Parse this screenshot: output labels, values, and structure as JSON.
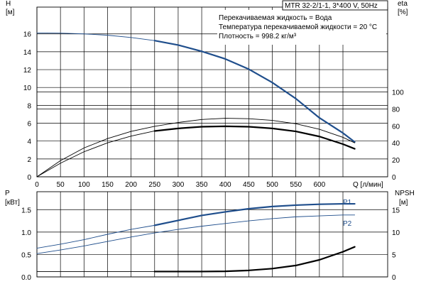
{
  "chart_data": [
    {
      "type": "line",
      "panel": "head-efficiency",
      "title": "MTR 32-2/1-1, 3*400 V, 50Hz",
      "annotations": [
        "Перекачиваемая жидкость = Вода",
        "Температура перекачиваемой жидкости = 20 °C",
        "Плотность = 998.2 кг/м³"
      ],
      "xlabel": "Q [л/мин]",
      "xlim": [
        0,
        745
      ],
      "xticks": [
        0,
        50,
        100,
        150,
        200,
        250,
        300,
        350,
        400,
        450,
        500,
        550,
        600
      ],
      "left_axis": {
        "label_line1": "H",
        "label_line2": "[м]",
        "ylim": [
          0,
          19
        ],
        "ticks": [
          0,
          2,
          4,
          6,
          8,
          10,
          12,
          14,
          16
        ]
      },
      "right_axis": {
        "label_line1": "eta",
        "label_line2": "[%]",
        "ylim": [
          0,
          200
        ],
        "ticks": [
          0,
          20,
          40,
          60,
          80,
          100
        ]
      },
      "grid": true,
      "series": [
        {
          "key": "head-thin",
          "axis": "left",
          "color": "#1f4e8c",
          "width": 0.9,
          "x": [
            0,
            50,
            100,
            150,
            200,
            250
          ],
          "y": [
            16.1,
            16.08,
            16.0,
            15.85,
            15.6,
            15.25
          ]
        },
        {
          "key": "head-thick",
          "axis": "left",
          "color": "#1f4e8c",
          "width": 2.2,
          "x": [
            250,
            300,
            350,
            400,
            450,
            500,
            550,
            600,
            650,
            675
          ],
          "y": [
            15.25,
            14.75,
            14.05,
            13.2,
            12.05,
            10.55,
            8.75,
            6.6,
            4.9,
            3.9
          ]
        },
        {
          "key": "eta-upper",
          "axis": "right",
          "color": "#000000",
          "width": 0.9,
          "x": [
            0,
            50,
            100,
            150,
            200,
            250,
            300,
            350,
            400,
            450,
            500,
            550,
            600,
            650,
            675
          ],
          "y": [
            0,
            19,
            34,
            45,
            53.5,
            59.5,
            64,
            67.5,
            69,
            68.5,
            66.5,
            62.5,
            56,
            46.5,
            40
          ]
        },
        {
          "key": "eta-lower",
          "axis": "right",
          "color": "#000000",
          "width": 0.9,
          "x": [
            0,
            50,
            100,
            150,
            200,
            250
          ],
          "y": [
            0,
            16,
            29.5,
            40,
            48,
            54
          ]
        },
        {
          "key": "eta-lower-thick",
          "axis": "right",
          "color": "#000000",
          "width": 2.2,
          "x": [
            250,
            300,
            350,
            400,
            450,
            500,
            550,
            600,
            650,
            675
          ],
          "y": [
            54,
            57,
            59,
            59.5,
            59,
            57,
            53.5,
            47.5,
            38.5,
            33
          ]
        }
      ]
    },
    {
      "type": "line",
      "panel": "power-npsh",
      "xlim": [
        0,
        745
      ],
      "left_axis": {
        "label_line1": "P",
        "label_line2": "[кВт]",
        "ylim": [
          0,
          1.9
        ],
        "ticks": [
          0.0,
          0.5,
          1.0,
          1.5
        ],
        "tick_labels": [
          "0.0",
          "0.5",
          "1.0",
          "1.5"
        ]
      },
      "right_axis": {
        "label_line1": "NPSH",
        "label_line2": "[м]",
        "ylim": [
          0,
          19
        ],
        "ticks": [
          0,
          5,
          10,
          15
        ]
      },
      "grid": true,
      "series": [
        {
          "key": "p1-thin",
          "name": "P1",
          "axis": "left",
          "color": "#1f4e8c",
          "width": 0.9,
          "x": [
            0,
            50,
            100,
            150,
            200,
            250
          ],
          "y": [
            0.64,
            0.73,
            0.83,
            0.95,
            1.06,
            1.15
          ]
        },
        {
          "key": "p1-thick",
          "axis": "left",
          "color": "#1f4e8c",
          "width": 2.2,
          "x": [
            250,
            300,
            350,
            400,
            450,
            500,
            550,
            600,
            650,
            675
          ],
          "y": [
            1.15,
            1.26,
            1.37,
            1.45,
            1.52,
            1.57,
            1.6,
            1.62,
            1.63,
            1.63
          ]
        },
        {
          "key": "p2",
          "name": "P2",
          "axis": "left",
          "color": "#1f4e8c",
          "width": 0.9,
          "x": [
            0,
            50,
            100,
            150,
            200,
            250,
            300,
            350,
            400,
            450,
            500,
            550,
            600,
            650,
            675
          ],
          "y": [
            0.52,
            0.6,
            0.69,
            0.79,
            0.89,
            0.98,
            1.06,
            1.13,
            1.19,
            1.25,
            1.3,
            1.34,
            1.36,
            1.38,
            1.38
          ]
        },
        {
          "key": "npsh-thin",
          "axis": "right",
          "color": "#000000",
          "width": 0.9,
          "x": [
            0,
            250
          ],
          "y": [
            1.2,
            1.2
          ]
        },
        {
          "key": "npsh-thick",
          "axis": "right",
          "color": "#000000",
          "width": 2.2,
          "x": [
            250,
            300,
            350,
            400,
            450,
            500,
            550,
            600,
            650,
            675
          ],
          "y": [
            1.2,
            1.2,
            1.2,
            1.25,
            1.45,
            1.85,
            2.55,
            3.8,
            5.6,
            6.7
          ]
        }
      ]
    }
  ]
}
